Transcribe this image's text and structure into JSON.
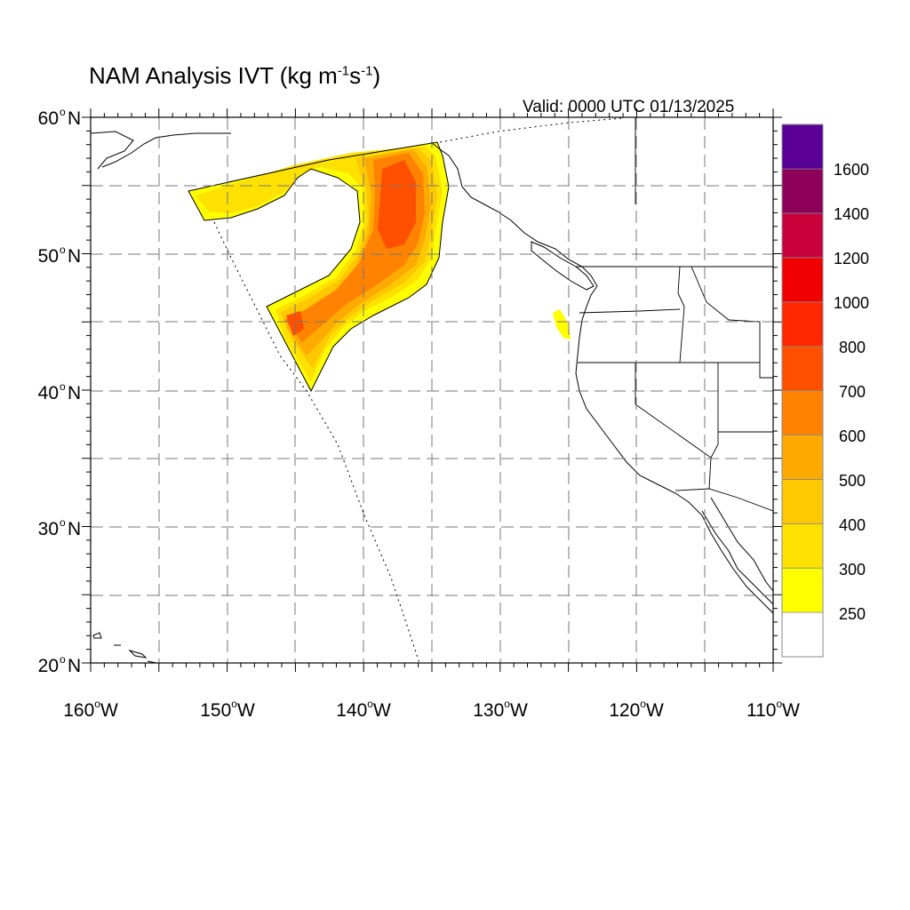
{
  "title": {
    "prefix": "NAM Analysis IVT (kg m",
    "exp1": "-1",
    "middle": "s",
    "exp2": "-1",
    "suffix": ")"
  },
  "valid_label": "Valid: 0000 UTC 01/13/2025",
  "lat_labels": [
    {
      "base": "60",
      "sup": "o",
      "dir": "N"
    },
    {
      "base": "50",
      "sup": "o",
      "dir": "N"
    },
    {
      "base": "40",
      "sup": "o",
      "dir": "N"
    },
    {
      "base": "30",
      "sup": "o",
      "dir": "N"
    },
    {
      "base": "20",
      "sup": "o",
      "dir": "N"
    }
  ],
  "lon_labels": [
    {
      "base": "160",
      "sup": "o",
      "dir": "W"
    },
    {
      "base": "150",
      "sup": "o",
      "dir": "W"
    },
    {
      "base": "140",
      "sup": "o",
      "dir": "W"
    },
    {
      "base": "130",
      "sup": "o",
      "dir": "W"
    },
    {
      "base": "120",
      "sup": "o",
      "dir": "W"
    },
    {
      "base": "110",
      "sup": "o",
      "dir": "W"
    }
  ],
  "colorbar": {
    "labels": [
      "250",
      "300",
      "400",
      "500",
      "600",
      "700",
      "800",
      "1000",
      "1200",
      "1400",
      "1600"
    ],
    "colors": [
      "#ffffff",
      "#ffff00",
      "#ffe100",
      "#ffc800",
      "#ffaa00",
      "#ff8200",
      "#ff5000",
      "#ff2800",
      "#f00000",
      "#c8003c",
      "#8c005a",
      "#5a0096"
    ]
  }
}
